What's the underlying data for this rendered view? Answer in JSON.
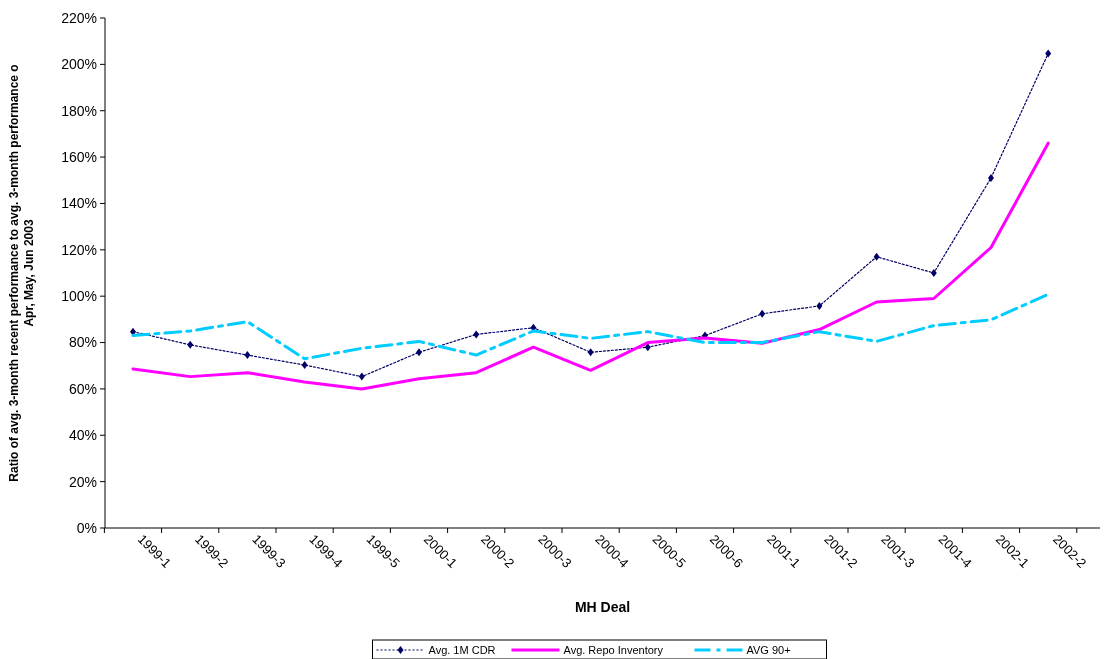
{
  "chart_data": {
    "type": "line",
    "xlabel": "MH Deal",
    "ylabel": "Ratio of avg. 3-month recent performance to avg. 3-month performance o\nApr, May, Jun 2003",
    "categories": [
      "1999-1",
      "1999-2",
      "1999-3",
      "1999-4",
      "1999-5",
      "2000-1",
      "2000-2",
      "2000-3",
      "2000-4",
      "2000-5",
      "2000-6",
      "2001-1",
      "2001-2",
      "2001-3",
      "2001-4",
      "2002-1",
      "2002-2"
    ],
    "series": [
      {
        "name": "Avg. 1M CDR",
        "color": "#000066",
        "marker": "diamond",
        "line_style": "dotted",
        "values": [
          84.7,
          79,
          74.6,
          70.3,
          65.3,
          75.8,
          83.5,
          86.4,
          75.8,
          78,
          83,
          92.4,
          95.8,
          117,
          110,
          151,
          204.7
        ]
      },
      {
        "name": "Avg. Repo Inventory",
        "color": "#ff00ff",
        "marker": "none",
        "line_style": "solid",
        "values": [
          68.6,
          65.3,
          67,
          63,
          60,
          64.4,
          67,
          78,
          68,
          80,
          82,
          79.7,
          85.6,
          97.5,
          99,
          121,
          166
        ]
      },
      {
        "name": "AVG 90+",
        "color": "#00ccff",
        "marker": "none",
        "line_style": "dashed",
        "values": [
          83,
          85,
          89,
          73,
          77.5,
          80.5,
          74.6,
          85,
          81.8,
          84.7,
          80,
          80,
          84.7,
          80.5,
          87.3,
          89.8,
          100.8
        ]
      }
    ],
    "ylim": [
      0,
      220
    ],
    "yticks": [
      {
        "value": 0,
        "label": "0%"
      },
      {
        "value": 20,
        "label": "20%"
      },
      {
        "value": 40,
        "label": "40%"
      },
      {
        "value": 60,
        "label": "60%"
      },
      {
        "value": 80,
        "label": "80%"
      },
      {
        "value": 100,
        "label": "100%"
      },
      {
        "value": 120,
        "label": "120%"
      },
      {
        "value": 140,
        "label": "140%"
      },
      {
        "value": 160,
        "label": "160%"
      },
      {
        "value": 180,
        "label": "180%"
      },
      {
        "value": 200,
        "label": "200%"
      },
      {
        "value": 220,
        "label": "220%"
      }
    ],
    "grid": false,
    "legend": "bottom"
  }
}
